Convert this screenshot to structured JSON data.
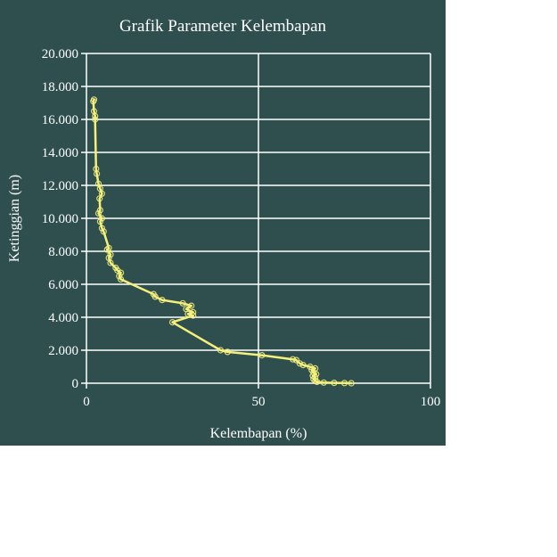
{
  "colors": {
    "background": "#2f4f4f",
    "grid": "#ffffff",
    "series": "#f5f07a",
    "text": "#ffffff"
  },
  "chart_data": {
    "type": "line",
    "title": "Grafik Parameter Kelembapan",
    "xlabel": "Kelembapan (%)",
    "ylabel": "Ketinggian (m)",
    "xlim": [
      0,
      100
    ],
    "ylim": [
      0,
      20000
    ],
    "x_ticks": [
      0,
      50,
      100
    ],
    "x_tick_labels": [
      "0",
      "50",
      "100"
    ],
    "y_ticks": [
      0,
      2000,
      4000,
      6000,
      8000,
      10000,
      12000,
      14000,
      16000,
      18000,
      20000
    ],
    "y_tick_labels": [
      "0",
      "2.000",
      "4.000",
      "6.000",
      "8.000",
      "10.000",
      "12.000",
      "14.000",
      "16.000",
      "18.000",
      "20.000"
    ],
    "grid": true,
    "legend": "none",
    "series": [
      {
        "points": [
          [
            77,
            0
          ],
          [
            75,
            10
          ],
          [
            72,
            20
          ],
          [
            69,
            40
          ],
          [
            67,
            80
          ],
          [
            66.5,
            150
          ],
          [
            66,
            250
          ],
          [
            66.5,
            350
          ],
          [
            65.8,
            450
          ],
          [
            66.8,
            550
          ],
          [
            66,
            650
          ],
          [
            65.5,
            800
          ],
          [
            66.5,
            900
          ],
          [
            65,
            1000
          ],
          [
            63,
            1100
          ],
          [
            62,
            1200
          ],
          [
            61,
            1400
          ],
          [
            60,
            1450
          ],
          [
            51,
            1700
          ],
          [
            41,
            1900
          ],
          [
            39,
            2000
          ],
          [
            25,
            3700
          ],
          [
            31,
            4100
          ],
          [
            29.5,
            4200
          ],
          [
            31,
            4300
          ],
          [
            29,
            4500
          ],
          [
            30.5,
            4700
          ],
          [
            28,
            4850
          ],
          [
            22,
            5050
          ],
          [
            20,
            5250
          ],
          [
            19.5,
            5400
          ],
          [
            10,
            6300
          ],
          [
            9.5,
            6500
          ],
          [
            10,
            6700
          ],
          [
            9,
            6850
          ],
          [
            8.5,
            7000
          ],
          [
            7,
            7300
          ],
          [
            6.5,
            7600
          ],
          [
            7,
            7800
          ],
          [
            6,
            8100
          ],
          [
            6.5,
            8200
          ],
          [
            5,
            9200
          ],
          [
            4.5,
            9400
          ],
          [
            4,
            9800
          ],
          [
            4.5,
            10000
          ],
          [
            3.5,
            10300
          ],
          [
            4,
            10500
          ],
          [
            3.8,
            11200
          ],
          [
            4.5,
            11500
          ],
          [
            4,
            11800
          ],
          [
            3.5,
            12100
          ],
          [
            3,
            12700
          ],
          [
            2.8,
            13000
          ],
          [
            2.5,
            16000
          ],
          [
            2.5,
            16200
          ],
          [
            2.2,
            16500
          ],
          [
            2,
            17100
          ],
          [
            2.2,
            17200
          ]
        ]
      }
    ]
  }
}
